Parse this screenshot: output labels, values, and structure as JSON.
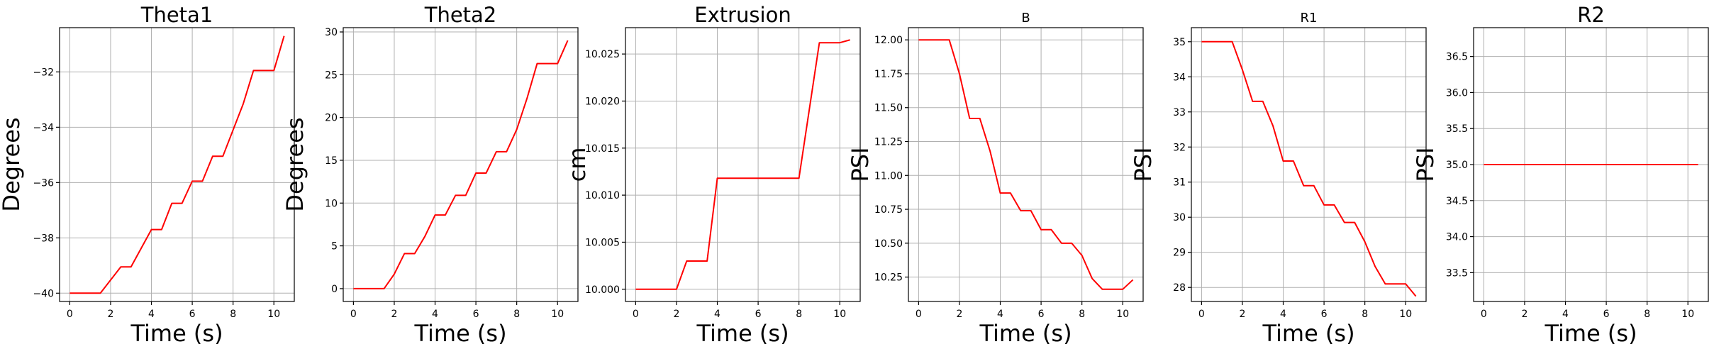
{
  "chart_data": [
    {
      "type": "line",
      "title": "Theta1",
      "title_size": "large",
      "xlabel": "Time (s)",
      "ylabel": "Degrees",
      "xlim": [
        -0.5,
        11
      ],
      "ylim": [
        -40.3,
        -30.4
      ],
      "xticks": [
        0,
        2,
        4,
        6,
        8,
        10
      ],
      "yticks": [
        -40,
        -38,
        -36,
        -34,
        -32
      ],
      "ytick_labels": [
        "−40",
        "−38",
        "−36",
        "−34",
        "−32"
      ],
      "grid": true,
      "color": "#ff0000",
      "x": [
        0,
        1.5,
        2.5,
        3,
        4,
        4.5,
        5,
        5.5,
        6,
        6.5,
        7,
        7.5,
        8.5,
        9,
        10,
        10.5
      ],
      "y": [
        -40,
        -40,
        -39.05,
        -39.05,
        -37.7,
        -37.7,
        -36.75,
        -36.75,
        -35.95,
        -35.95,
        -35.05,
        -35.05,
        -33.15,
        -31.95,
        -31.95,
        -30.7
      ]
    },
    {
      "type": "line",
      "title": "Theta2",
      "title_size": "large",
      "xlabel": "Time (s)",
      "ylabel": "Degrees",
      "xlim": [
        -0.5,
        11
      ],
      "ylim": [
        -1.5,
        30.5
      ],
      "xticks": [
        0,
        2,
        4,
        6,
        8,
        10
      ],
      "yticks": [
        0,
        5,
        10,
        15,
        20,
        25,
        30
      ],
      "ytick_labels": [
        "0",
        "5",
        "10",
        "15",
        "20",
        "25",
        "30"
      ],
      "grid": true,
      "color": "#ff0000",
      "x": [
        0,
        1.5,
        2,
        2.5,
        3,
        3.5,
        4,
        4.5,
        5,
        5.5,
        6,
        6.5,
        7,
        7.5,
        8,
        8.5,
        9,
        10,
        10.5
      ],
      "y": [
        0,
        0,
        1.7,
        4.1,
        4.1,
        6.1,
        8.6,
        8.6,
        10.9,
        10.9,
        13.5,
        13.5,
        16,
        16,
        18.6,
        22.2,
        26.3,
        26.3,
        29
      ]
    },
    {
      "type": "line",
      "title": "Extrusion",
      "title_size": "large",
      "xlabel": "Time (s)",
      "ylabel": "cm",
      "xlim": [
        -0.5,
        11
      ],
      "ylim": [
        9.9987,
        10.0278
      ],
      "xticks": [
        0,
        2,
        4,
        6,
        8,
        10
      ],
      "yticks": [
        10.0,
        10.005,
        10.01,
        10.015,
        10.02,
        10.025
      ],
      "ytick_labels": [
        "10.000",
        "10.005",
        "10.010",
        "10.015",
        "10.020",
        "10.025"
      ],
      "grid": true,
      "color": "#ff0000",
      "x": [
        0,
        2,
        2.5,
        3.5,
        4,
        8,
        9,
        10,
        10.5
      ],
      "y": [
        10.0,
        10.0,
        10.003,
        10.003,
        10.0118,
        10.0118,
        10.0262,
        10.0262,
        10.0265
      ]
    },
    {
      "type": "line",
      "title": "B",
      "title_size": "small",
      "xlabel": "Time (s)",
      "ylabel": "PSI",
      "xlim": [
        -0.5,
        11
      ],
      "ylim": [
        10.07,
        12.09
      ],
      "xticks": [
        0,
        2,
        4,
        6,
        8,
        10
      ],
      "yticks": [
        10.25,
        10.5,
        10.75,
        11.0,
        11.25,
        11.5,
        11.75,
        12.0
      ],
      "ytick_labels": [
        "10.25",
        "10.50",
        "10.75",
        "11.00",
        "11.25",
        "11.50",
        "11.75",
        "12.00"
      ],
      "grid": true,
      "color": "#ff0000",
      "x": [
        0,
        1.5,
        2,
        2.5,
        3,
        3.5,
        4,
        4.5,
        5,
        5.5,
        6,
        6.5,
        7,
        7.5,
        8,
        8.5,
        9,
        10,
        10.5
      ],
      "y": [
        12,
        12,
        11.75,
        11.42,
        11.42,
        11.18,
        10.87,
        10.87,
        10.74,
        10.74,
        10.6,
        10.6,
        10.5,
        10.5,
        10.41,
        10.24,
        10.16,
        10.16,
        10.23
      ]
    },
    {
      "type": "line",
      "title": "R1",
      "title_size": "small",
      "xlabel": "Time (s)",
      "ylabel": "PSI",
      "xlim": [
        -0.5,
        11
      ],
      "ylim": [
        27.6,
        35.4
      ],
      "xticks": [
        0,
        2,
        4,
        6,
        8,
        10
      ],
      "yticks": [
        28,
        29,
        30,
        31,
        32,
        33,
        34,
        35
      ],
      "ytick_labels": [
        "28",
        "29",
        "30",
        "31",
        "32",
        "33",
        "34",
        "35"
      ],
      "grid": true,
      "color": "#ff0000",
      "x": [
        0,
        1.5,
        2,
        2.5,
        3,
        3.5,
        4,
        4.5,
        5,
        5.5,
        6,
        6.5,
        7,
        7.5,
        8,
        8.5,
        9,
        10,
        10.5
      ],
      "y": [
        35,
        35,
        34.2,
        33.3,
        33.3,
        32.6,
        31.6,
        31.6,
        30.9,
        30.9,
        30.35,
        30.35,
        29.85,
        29.85,
        29.3,
        28.6,
        28.1,
        28.1,
        27.75
      ]
    },
    {
      "type": "line",
      "title": "R2",
      "title_size": "large",
      "xlabel": "Time (s)",
      "ylabel": "PSI",
      "xlim": [
        -0.5,
        11
      ],
      "ylim": [
        33.1,
        36.9
      ],
      "xticks": [
        0,
        2,
        4,
        6,
        8,
        10
      ],
      "yticks": [
        33.5,
        34.0,
        34.5,
        35.0,
        35.5,
        36.0,
        36.5
      ],
      "ytick_labels": [
        "33.5",
        "34.0",
        "34.5",
        "35.0",
        "35.5",
        "36.0",
        "36.5"
      ],
      "grid": true,
      "color": "#ff0000",
      "x": [
        0,
        10.5
      ],
      "y": [
        35,
        35
      ]
    }
  ]
}
